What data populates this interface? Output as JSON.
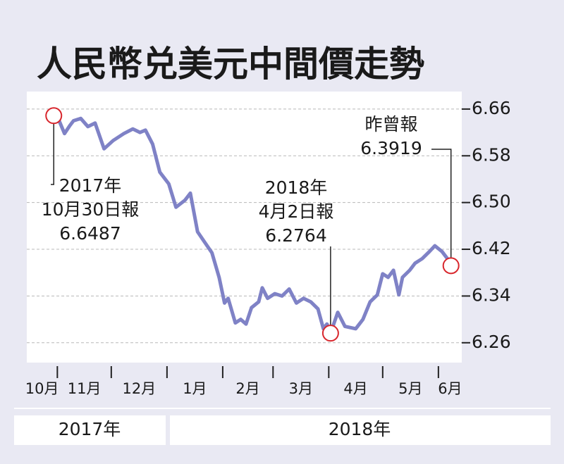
{
  "chart_data": {
    "type": "line",
    "title": "人民幣兑美元中間價走勢",
    "series": [
      {
        "name": "中間價",
        "color": "#7f82c6",
        "x": [
          29,
          32,
          35,
          38,
          40,
          44,
          48,
          52,
          57,
          62,
          68,
          73,
          77,
          80,
          84,
          88,
          93,
          97,
          102,
          105,
          109,
          113,
          117,
          121,
          124,
          126,
          130,
          133,
          136,
          139,
          143,
          145,
          148,
          152,
          156,
          160,
          164,
          168,
          172,
          176,
          179,
          181,
          183,
          187,
          191,
          197,
          201,
          205,
          209,
          212,
          215,
          218,
          221,
          223,
          227,
          230,
          234,
          238,
          241,
          245,
          248,
          250
        ],
        "values": [
          6.6487,
          6.64,
          6.618,
          6.632,
          6.64,
          6.644,
          6.63,
          6.636,
          6.592,
          6.606,
          6.618,
          6.626,
          6.62,
          6.624,
          6.6,
          6.552,
          6.532,
          6.492,
          6.504,
          6.516,
          6.45,
          6.432,
          6.414,
          6.372,
          6.328,
          6.336,
          6.294,
          6.3,
          6.292,
          6.32,
          6.33,
          6.354,
          6.336,
          6.344,
          6.34,
          6.352,
          6.328,
          6.336,
          6.33,
          6.318,
          6.284,
          6.292,
          6.2764,
          6.312,
          6.288,
          6.284,
          6.3,
          6.33,
          6.342,
          6.378,
          6.372,
          6.384,
          6.342,
          6.372,
          6.384,
          6.396,
          6.404,
          6.416,
          6.426,
          6.416,
          6.404,
          6.3919
        ]
      }
    ],
    "annotations": [
      {
        "x": 29,
        "value": 6.6487,
        "lines": [
          "2017年",
          "10月30日報"
        ]
      },
      {
        "x": 183,
        "value": 6.2764,
        "lines": [
          "2018年",
          "4月2日報"
        ]
      },
      {
        "x": 250,
        "value": 6.3919,
        "lines": [
          "昨曾報"
        ]
      }
    ],
    "marker_color": "#d8262c",
    "xlim": [
      14,
      256
    ],
    "xticks": [
      31,
      61,
      92,
      123,
      151,
      182,
      212,
      243
    ],
    "months": [
      "10月",
      "11月",
      "12月",
      "1月",
      "2月",
      "3月",
      "4月",
      "5月",
      "6月"
    ],
    "years": [
      "2017年",
      "2018年"
    ],
    "ylim": [
      6.226,
      6.69
    ],
    "yticks": [
      {
        "value": 6.66,
        "label": "6.66"
      },
      {
        "value": 6.58,
        "label": "6.58"
      },
      {
        "value": 6.5,
        "label": "6.50"
      },
      {
        "value": 6.42,
        "label": "6.42"
      },
      {
        "value": 6.34,
        "label": "6.34"
      },
      {
        "value": 6.26,
        "label": "6.26"
      }
    ],
    "grid": true
  }
}
